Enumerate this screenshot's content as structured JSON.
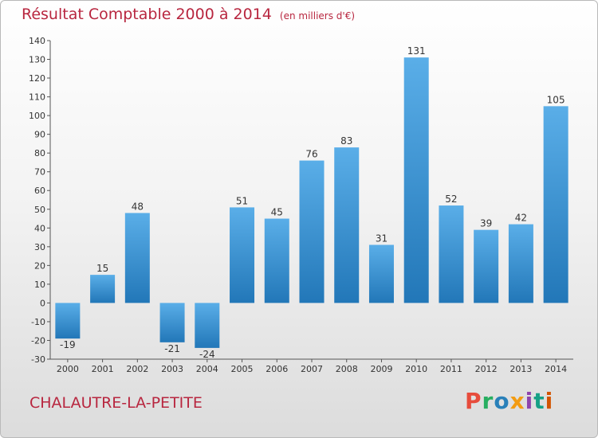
{
  "chart_data": {
    "type": "bar",
    "title": "Résultat Comptable 2000 à 2014",
    "subtitle": "(en milliers d'€)",
    "categories": [
      "2000",
      "2001",
      "2002",
      "2003",
      "2004",
      "2005",
      "2006",
      "2007",
      "2008",
      "2009",
      "2010",
      "2011",
      "2012",
      "2013",
      "2014"
    ],
    "values": [
      -19,
      15,
      48,
      -21,
      -24,
      51,
      45,
      76,
      83,
      31,
      131,
      52,
      39,
      42,
      105
    ],
    "ylim": [
      -30,
      140
    ],
    "yticks": [
      -30,
      -20,
      -10,
      0,
      10,
      20,
      30,
      40,
      50,
      60,
      70,
      80,
      90,
      100,
      110,
      120,
      130,
      140
    ],
    "grid": false,
    "bar_color_light": "#5aaee8",
    "bar_color_dark": "#2277b8"
  },
  "footer": {
    "location": "CHALAUTRE-LA-PETITE",
    "brand_letters": [
      "P",
      "r",
      "o",
      "x",
      "i",
      "t",
      "i"
    ],
    "brand_colors": [
      "#e74c3c",
      "#27ae60",
      "#2980b9",
      "#f39c12",
      "#8e44ad",
      "#16a085",
      "#d35400"
    ]
  },
  "colors": {
    "title": "#b8263f",
    "axis": "#555555",
    "label": "#333333"
  }
}
